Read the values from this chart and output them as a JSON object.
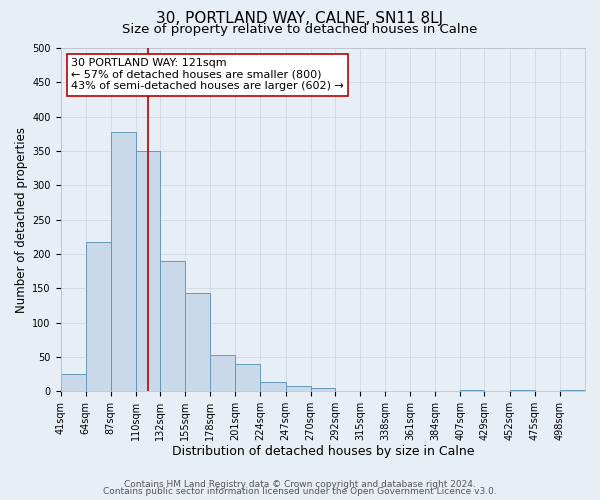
{
  "title": "30, PORTLAND WAY, CALNE, SN11 8LJ",
  "subtitle": "Size of property relative to detached houses in Calne",
  "xlabel": "Distribution of detached houses by size in Calne",
  "ylabel": "Number of detached properties",
  "bar_labels": [
    "41sqm",
    "64sqm",
    "87sqm",
    "110sqm",
    "132sqm",
    "155sqm",
    "178sqm",
    "201sqm",
    "224sqm",
    "247sqm",
    "270sqm",
    "292sqm",
    "315sqm",
    "338sqm",
    "361sqm",
    "384sqm",
    "407sqm",
    "429sqm",
    "452sqm",
    "475sqm",
    "498sqm"
  ],
  "bar_values": [
    25,
    218,
    378,
    350,
    190,
    143,
    53,
    40,
    13,
    7,
    5,
    0,
    0,
    0,
    0,
    0,
    2,
    0,
    2,
    0,
    2
  ],
  "bar_color": "#c9d9ea",
  "bar_edgecolor": "#6699bb",
  "vline_x": 121,
  "bin_edges": [
    41,
    64,
    87,
    110,
    132,
    155,
    178,
    201,
    224,
    247,
    270,
    292,
    315,
    338,
    361,
    384,
    407,
    429,
    452,
    475,
    498,
    521
  ],
  "vline_color": "#bb0000",
  "annotation_text": "30 PORTLAND WAY: 121sqm\n← 57% of detached houses are smaller (800)\n43% of semi-detached houses are larger (602) →",
  "annotation_box_edgecolor": "#bb0000",
  "ylim": [
    0,
    500
  ],
  "yticks": [
    0,
    50,
    100,
    150,
    200,
    250,
    300,
    350,
    400,
    450,
    500
  ],
  "background_color": "#e8eef5",
  "plot_bg_color": "#e8eef5",
  "grid_color": "#d0d8e4",
  "footer_line1": "Contains HM Land Registry data © Crown copyright and database right 2024.",
  "footer_line2": "Contains public sector information licensed under the Open Government Licence v3.0.",
  "title_fontsize": 11,
  "subtitle_fontsize": 9.5,
  "xlabel_fontsize": 9,
  "ylabel_fontsize": 8.5,
  "tick_fontsize": 7,
  "annotation_fontsize": 8,
  "footer_fontsize": 6.5
}
